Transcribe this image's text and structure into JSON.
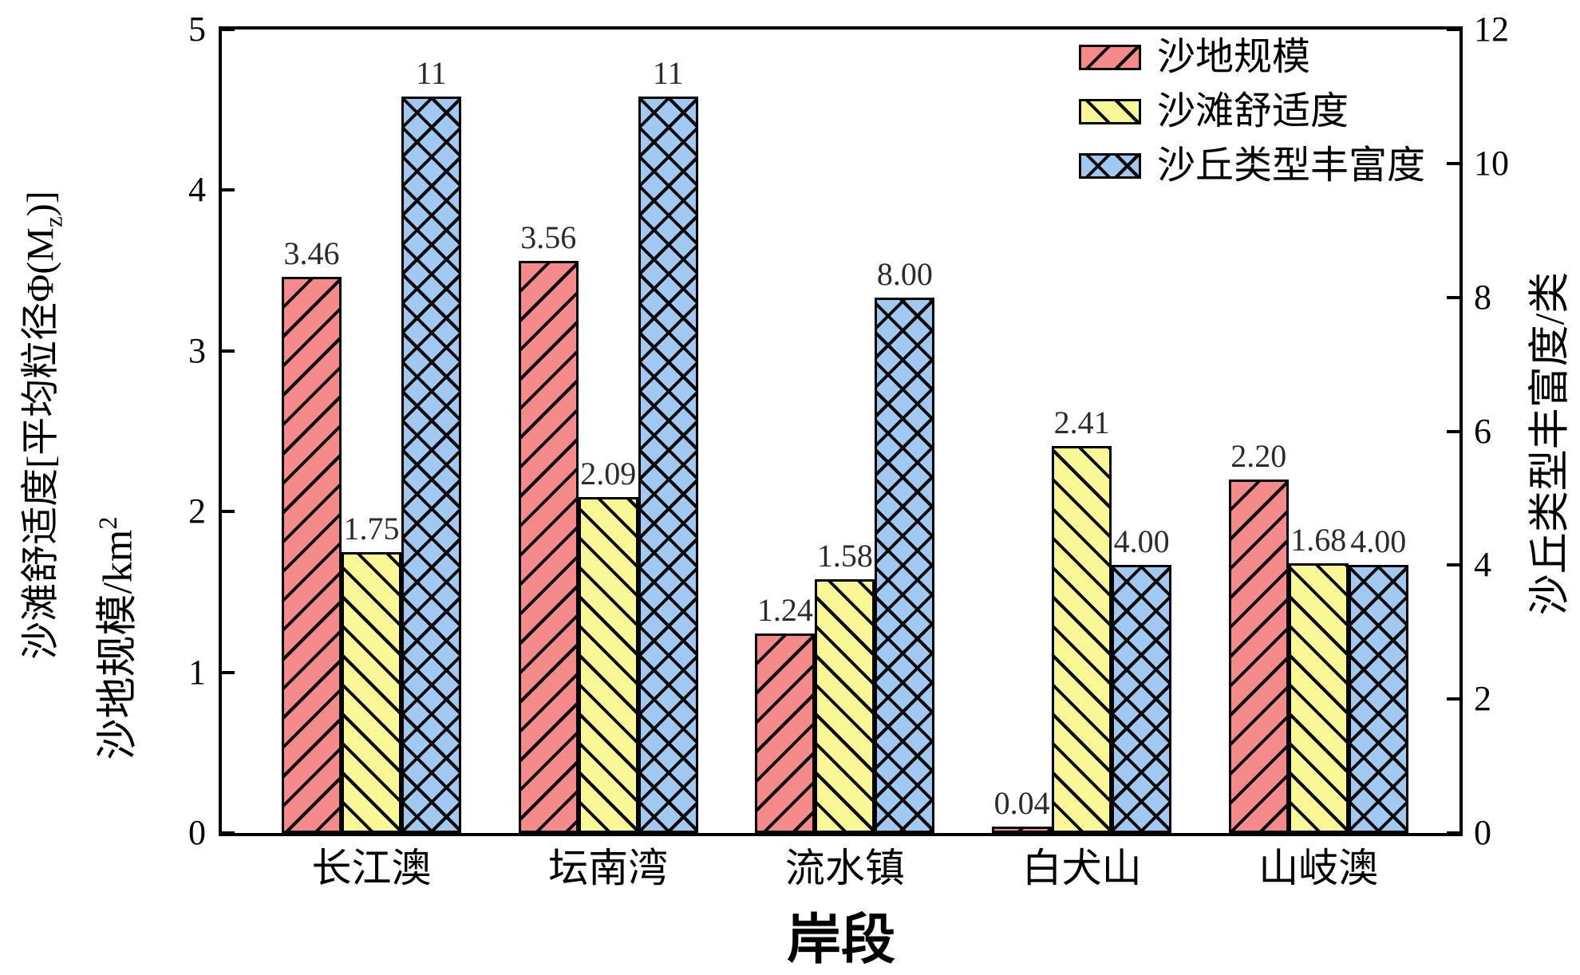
{
  "chart_data": {
    "type": "bar",
    "categories": [
      "长江澳",
      "坛南湾",
      "流水镇",
      "白犬山",
      "山岐澳"
    ],
    "series": [
      {
        "name": "沙地规模",
        "axis": "left",
        "hatch": "forward-diagonal",
        "color": "#F48A8A",
        "values": [
          3.46,
          3.56,
          1.24,
          0.04,
          2.2
        ],
        "value_labels": [
          "3.46",
          "3.56",
          "1.24",
          "0.04",
          "2.20"
        ]
      },
      {
        "name": "沙滩舒适度",
        "axis": "left",
        "hatch": "back-diagonal",
        "color": "#FAF796",
        "values": [
          1.75,
          2.09,
          1.58,
          2.41,
          1.68
        ],
        "value_labels": [
          "1.75",
          "2.09",
          "1.58",
          "2.41",
          "1.68"
        ]
      },
      {
        "name": "沙丘类型丰富度",
        "axis": "right",
        "hatch": "cross-diagonal",
        "color": "#A0C8F0",
        "values": [
          11,
          11,
          8,
          4,
          4
        ],
        "value_labels": [
          "11",
          "11",
          "8.00",
          "4.00",
          "4.00"
        ]
      }
    ],
    "xlabel": "岸段",
    "left_axis": {
      "range": [
        0,
        5
      ],
      "ticks": [
        "0",
        "1",
        "2",
        "3",
        "4",
        "5"
      ],
      "label_outer_main": "沙滩舒适度[平均粒径Φ(M",
      "label_outer_sub": "z",
      "label_outer_end": ")]",
      "label_inner_main": "沙地规模/km",
      "label_inner_sup": "2"
    },
    "right_axis": {
      "range": [
        0,
        12
      ],
      "ticks": [
        "0",
        "2",
        "4",
        "6",
        "8",
        "10",
        "12"
      ],
      "label": "沙丘类型丰富度/类"
    },
    "legend": {
      "position": "top-right-inside",
      "entries": [
        "沙地规模",
        "沙滩舒适度",
        "沙丘类型丰富度"
      ]
    },
    "grid": false,
    "hatch_color": "#000000",
    "bar_edge_color": "#000000",
    "text_color": "#000000",
    "value_label_color": "#2b2b2b",
    "background_color": "#ffffff"
  }
}
